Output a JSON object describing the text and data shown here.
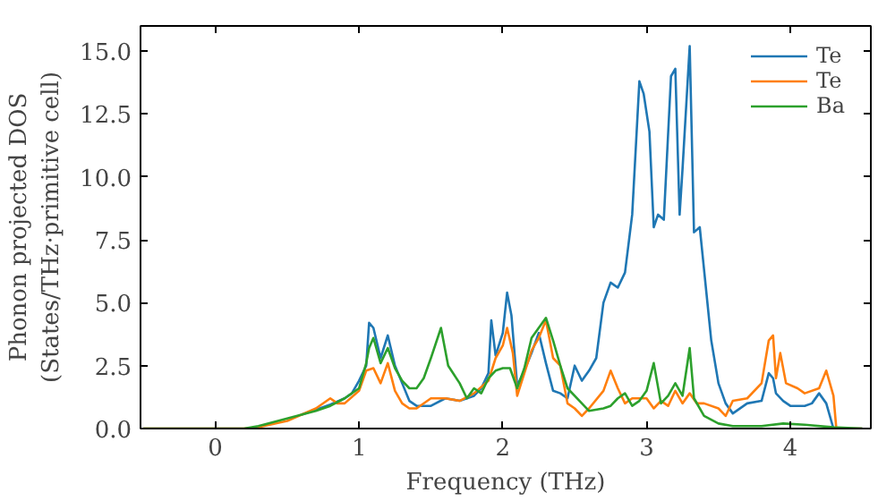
{
  "chart_data": {
    "type": "line",
    "xlabel": "Frequency (THz)",
    "ylabel": "Phonon projected DOS\n(States/THz·primitive cell)",
    "xlim": [
      -0.52,
      4.56
    ],
    "ylim": [
      0,
      16
    ],
    "xticks": [
      0,
      1,
      2,
      3,
      4
    ],
    "yticks": [
      {
        "value": 0,
        "label": "0.0"
      },
      2.5,
      {
        "value": 5,
        "label": "5.0"
      },
      7.5,
      {
        "value": 10,
        "label": "10.0"
      },
      12.5,
      {
        "value": 15,
        "label": "15.0"
      }
    ],
    "grid": false,
    "legend": "top right",
    "line_style": "solid",
    "marker": "none",
    "series": [
      {
        "name": "Te",
        "color": "#1f77b4",
        "x": [
          0.6,
          0.7,
          0.8,
          0.9,
          0.95,
          1.0,
          1.05,
          1.07,
          1.1,
          1.15,
          1.2,
          1.25,
          1.3,
          1.35,
          1.4,
          1.5,
          1.6,
          1.7,
          1.8,
          1.85,
          1.9,
          1.92,
          1.95,
          2.0,
          2.03,
          2.06,
          2.1,
          2.15,
          2.2,
          2.25,
          2.3,
          2.35,
          2.4,
          2.45,
          2.5,
          2.55,
          2.6,
          2.65,
          2.7,
          2.75,
          2.8,
          2.85,
          2.9,
          2.95,
          2.98,
          3.02,
          3.05,
          3.08,
          3.12,
          3.17,
          3.2,
          3.23,
          3.25,
          3.3,
          3.33,
          3.37,
          3.45,
          3.5,
          3.55,
          3.6,
          3.7,
          3.8,
          3.85,
          3.88,
          3.9,
          3.95,
          4.0,
          4.1,
          4.15,
          4.2,
          4.25,
          4.3,
          4.5
        ],
        "values": [
          0.55,
          0.75,
          0.95,
          1.2,
          1.4,
          1.9,
          2.5,
          4.2,
          4.0,
          2.8,
          3.7,
          2.5,
          1.8,
          1.1,
          0.9,
          0.9,
          1.2,
          1.1,
          1.3,
          1.6,
          2.2,
          4.3,
          2.9,
          3.8,
          5.4,
          4.5,
          1.7,
          2.3,
          3.0,
          3.8,
          2.6,
          1.5,
          1.4,
          1.2,
          2.5,
          1.9,
          2.3,
          2.8,
          5.0,
          5.8,
          5.6,
          6.2,
          8.5,
          13.8,
          13.3,
          11.8,
          8.0,
          8.5,
          8.3,
          14.0,
          14.3,
          8.5,
          10.3,
          15.2,
          7.8,
          8.0,
          3.5,
          1.8,
          1.0,
          0.6,
          1.0,
          1.1,
          2.2,
          2.0,
          1.4,
          1.1,
          0.9,
          0.9,
          1.0,
          1.4,
          1.0,
          0,
          0
        ]
      },
      {
        "name": "Te",
        "color": "#ff7f0e",
        "x": [
          -0.5,
          0.2,
          0.3,
          0.5,
          0.7,
          0.8,
          0.85,
          0.9,
          1.0,
          1.05,
          1.1,
          1.15,
          1.2,
          1.25,
          1.3,
          1.35,
          1.4,
          1.5,
          1.6,
          1.7,
          1.8,
          1.9,
          1.95,
          2.0,
          2.03,
          2.07,
          2.1,
          2.15,
          2.2,
          2.25,
          2.3,
          2.35,
          2.4,
          2.45,
          2.5,
          2.55,
          2.6,
          2.7,
          2.75,
          2.8,
          2.85,
          2.9,
          3.0,
          3.05,
          3.1,
          3.15,
          3.2,
          3.25,
          3.3,
          3.35,
          3.4,
          3.5,
          3.55,
          3.6,
          3.7,
          3.8,
          3.85,
          3.88,
          3.9,
          3.93,
          3.97,
          4.05,
          4.1,
          4.2,
          4.25,
          4.3,
          4.32,
          4.5
        ],
        "values": [
          0,
          0,
          0.05,
          0.3,
          0.8,
          1.2,
          1.0,
          1.0,
          1.5,
          2.3,
          2.4,
          1.8,
          2.6,
          1.5,
          1.0,
          0.8,
          0.8,
          1.2,
          1.2,
          1.1,
          1.4,
          1.9,
          2.8,
          3.3,
          4.0,
          3.0,
          1.3,
          2.2,
          3.1,
          3.6,
          4.3,
          2.8,
          2.5,
          1.0,
          0.8,
          0.5,
          0.8,
          1.5,
          2.3,
          1.6,
          1.0,
          1.2,
          1.2,
          0.8,
          1.1,
          0.9,
          1.5,
          1.0,
          1.4,
          1.0,
          1.0,
          0.8,
          0.5,
          1.1,
          1.2,
          1.8,
          3.5,
          3.7,
          2.0,
          3.0,
          1.8,
          1.6,
          1.4,
          1.6,
          2.3,
          1.3,
          0,
          0
        ]
      },
      {
        "name": "Ba",
        "color": "#2ca02c",
        "x": [
          -0.5,
          0.2,
          0.3,
          0.5,
          0.7,
          0.8,
          0.9,
          1.0,
          1.05,
          1.07,
          1.1,
          1.15,
          1.2,
          1.25,
          1.3,
          1.35,
          1.4,
          1.45,
          1.5,
          1.57,
          1.62,
          1.7,
          1.75,
          1.8,
          1.85,
          1.9,
          1.95,
          2.0,
          2.05,
          2.1,
          2.15,
          2.2,
          2.25,
          2.3,
          2.35,
          2.4,
          2.45,
          2.55,
          2.6,
          2.7,
          2.75,
          2.8,
          2.85,
          2.9,
          2.95,
          3.0,
          3.05,
          3.1,
          3.15,
          3.2,
          3.25,
          3.3,
          3.33,
          3.4,
          3.5,
          3.6,
          3.8,
          3.95,
          4.1,
          4.3,
          4.5
        ],
        "values": [
          0,
          0,
          0.1,
          0.4,
          0.7,
          0.9,
          1.2,
          1.6,
          2.6,
          3.2,
          3.6,
          2.6,
          3.2,
          2.4,
          1.9,
          1.6,
          1.6,
          2.0,
          2.8,
          4.0,
          2.5,
          1.8,
          1.2,
          1.6,
          1.4,
          2.0,
          2.3,
          2.4,
          2.4,
          1.6,
          2.4,
          3.6,
          4.0,
          4.4,
          3.5,
          2.5,
          1.6,
          1.0,
          0.7,
          0.8,
          0.9,
          1.2,
          1.4,
          0.9,
          1.1,
          1.5,
          2.6,
          1.0,
          1.3,
          1.8,
          1.3,
          3.2,
          1.2,
          0.5,
          0.2,
          0.1,
          0.1,
          0.2,
          0.15,
          0.05,
          0
        ]
      }
    ]
  }
}
